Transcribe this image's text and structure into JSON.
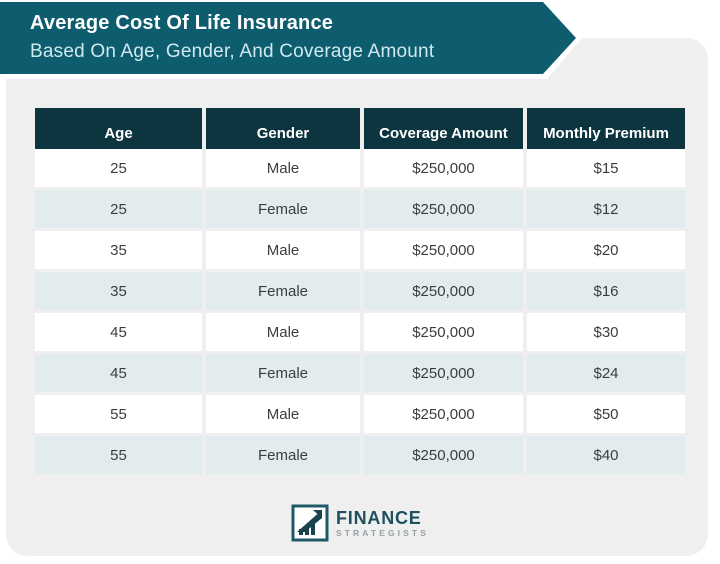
{
  "banner": {
    "title": "Average Cost Of Life Insurance",
    "subtitle": "Based On Age, Gender, And Coverage Amount"
  },
  "table": {
    "columns": [
      "Age",
      "Gender",
      "Coverage Amount",
      "Monthly Premium"
    ],
    "rows": [
      [
        "25",
        "Male",
        "$250,000",
        "$15"
      ],
      [
        "25",
        "Female",
        "$250,000",
        "$12"
      ],
      [
        "35",
        "Male",
        "$250,000",
        "$20"
      ],
      [
        "35",
        "Female",
        "$250,000",
        "$16"
      ],
      [
        "45",
        "Male",
        "$250,000",
        "$30"
      ],
      [
        "45",
        "Female",
        "$250,000",
        "$24"
      ],
      [
        "55",
        "Male",
        "$250,000",
        "$50"
      ],
      [
        "55",
        "Female",
        "$250,000",
        "$40"
      ]
    ]
  },
  "logo": {
    "name": "FINANCE",
    "sub": "STRATEGISTS"
  },
  "colors": {
    "banner_teal": "#0d5d6e",
    "banner_outline": "#ffffff",
    "header_bg": "#0d3540",
    "alt_row": "#e2ecef",
    "card_bg": "#efefef",
    "subtitle_text": "#cfe9ef",
    "body_text": "#3d3d3d",
    "logo_teal": "#1d515e"
  },
  "chart_data": {
    "type": "table",
    "title": "Average Cost Of Life Insurance Based On Age, Gender, And Coverage Amount",
    "columns": [
      "Age",
      "Gender",
      "Coverage Amount",
      "Monthly Premium"
    ],
    "rows": [
      {
        "age": 25,
        "gender": "Male",
        "coverage_amount": "$250,000",
        "monthly_premium": "$15"
      },
      {
        "age": 25,
        "gender": "Female",
        "coverage_amount": "$250,000",
        "monthly_premium": "$12"
      },
      {
        "age": 35,
        "gender": "Male",
        "coverage_amount": "$250,000",
        "monthly_premium": "$20"
      },
      {
        "age": 35,
        "gender": "Female",
        "coverage_amount": "$250,000",
        "monthly_premium": "$16"
      },
      {
        "age": 45,
        "gender": "Male",
        "coverage_amount": "$250,000",
        "monthly_premium": "$30"
      },
      {
        "age": 45,
        "gender": "Female",
        "coverage_amount": "$250,000",
        "monthly_premium": "$24"
      },
      {
        "age": 55,
        "gender": "Male",
        "coverage_amount": "$250,000",
        "monthly_premium": "$50"
      },
      {
        "age": 55,
        "gender": "Female",
        "coverage_amount": "$250,000",
        "monthly_premium": "$40"
      }
    ]
  }
}
